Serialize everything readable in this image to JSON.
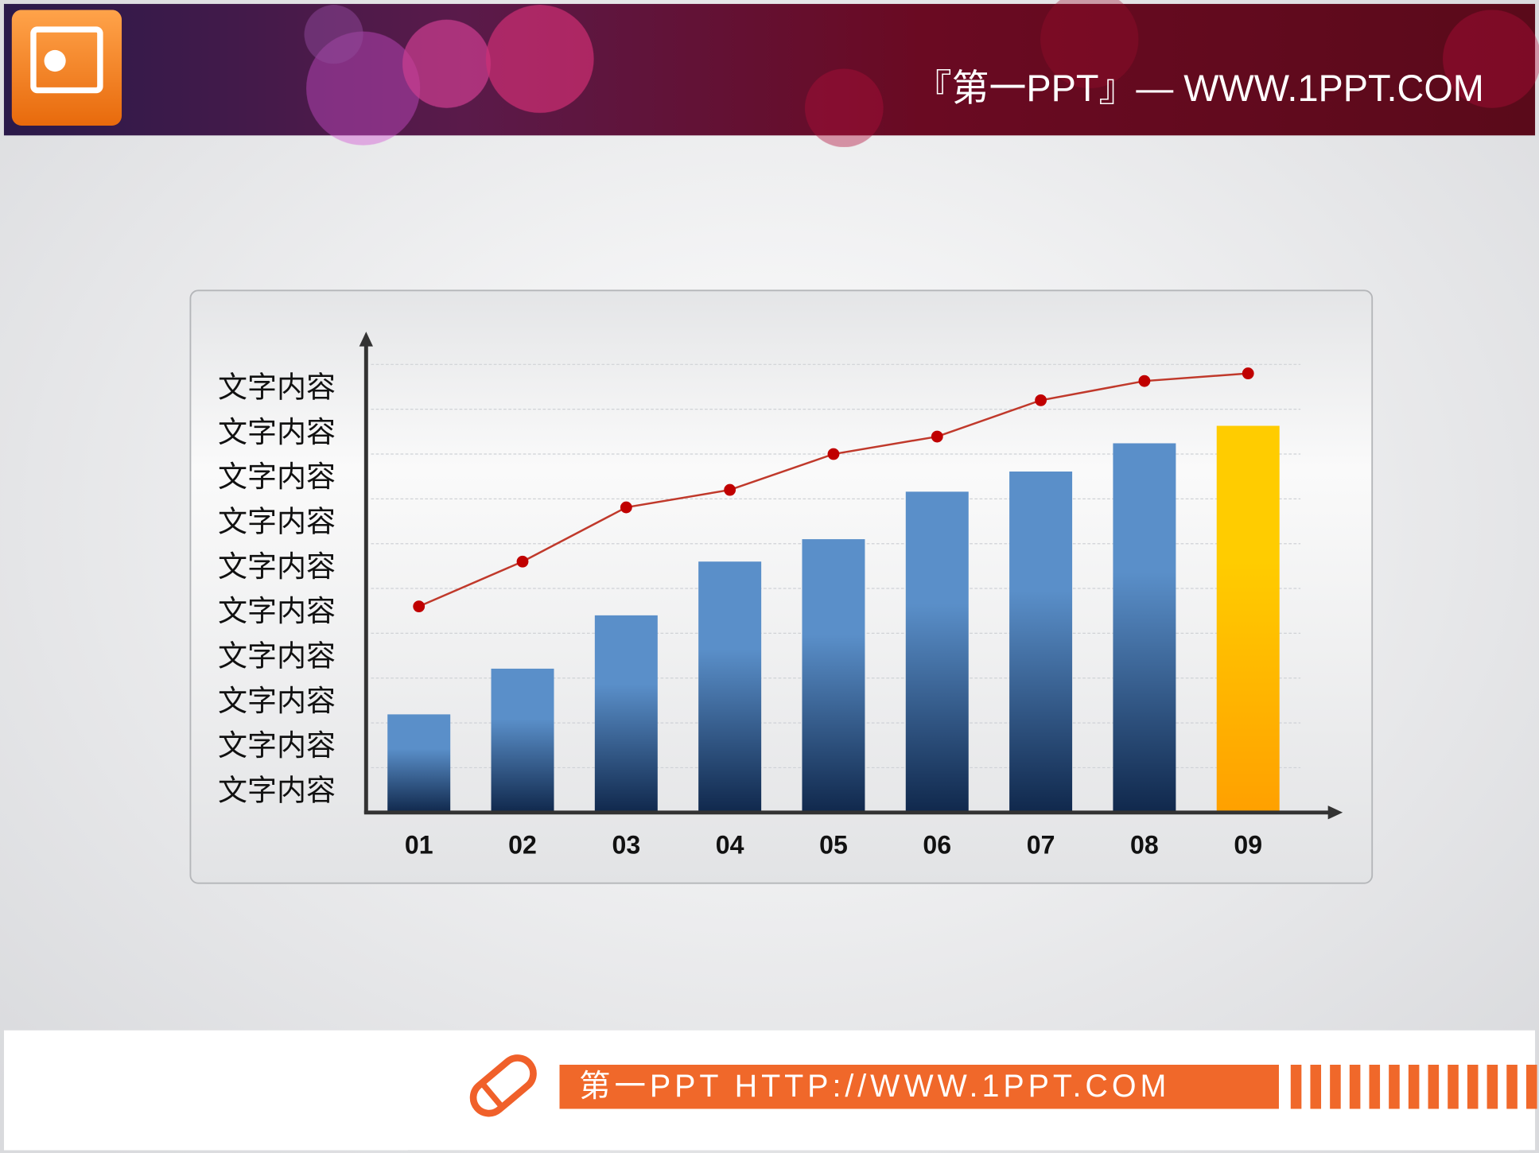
{
  "header": {
    "text": "『第一PPT』— WWW.1PPT.COM"
  },
  "footer": {
    "text": "第一PPT HTTP://WWW.1PPT.COM"
  },
  "chart_data": {
    "type": "bar",
    "categories": [
      "01",
      "02",
      "03",
      "04",
      "05",
      "06",
      "07",
      "08",
      "09"
    ],
    "series": [
      {
        "type": "bar",
        "colors": [
          "#5a8fc9",
          "#5a8fc9",
          "#5a8fc9",
          "#5a8fc9",
          "#5a8fc9",
          "#5a8fc9",
          "#5a8fc9",
          "#5a8fc9",
          "#ffcc00"
        ],
        "gradient_colors": [
          "#10284c",
          "#10284c",
          "#10284c",
          "#10284c",
          "#10284c",
          "#10284c",
          "#10284c",
          "#10284c",
          "#ffa000"
        ],
        "values": [
          2.19,
          3.21,
          4.4,
          5.6,
          6.1,
          7.16,
          7.61,
          8.24,
          8.63
        ]
      },
      {
        "type": "line",
        "color": "#c0392b",
        "values": [
          4.6,
          5.6,
          6.81,
          7.2,
          8.0,
          8.39,
          9.2,
          9.63,
          9.8
        ]
      }
    ],
    "ylim": [
      0,
      10.6
    ],
    "yticks": [
      {
        "value": 1,
        "label": "文字内容"
      },
      {
        "value": 2,
        "label": "文字内容"
      },
      {
        "value": 3,
        "label": "文字内容"
      },
      {
        "value": 4,
        "label": "文字内容"
      },
      {
        "value": 5,
        "label": "文字内容"
      },
      {
        "value": 6,
        "label": "文字内容"
      },
      {
        "value": 7,
        "label": "文字内容"
      },
      {
        "value": 8,
        "label": "文字内容"
      },
      {
        "value": 9,
        "label": "文字内容"
      },
      {
        "value": 10,
        "label": "文字内容"
      }
    ],
    "grid": true
  }
}
